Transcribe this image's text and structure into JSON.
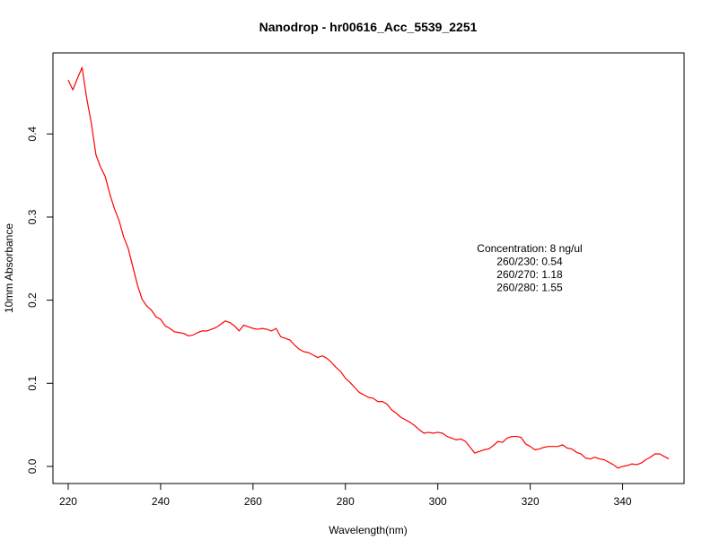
{
  "chart_data": {
    "type": "line",
    "title": "Nanodrop - hr00616_Acc_5539_2251",
    "xlabel": "Wavelength(nm)",
    "ylabel": "10mm Absorbance",
    "xlim": [
      216.7,
      353.3
    ],
    "ylim": [
      -0.0206,
      0.4975
    ],
    "xticks": [
      220,
      240,
      260,
      280,
      300,
      320,
      340
    ],
    "yticks": [
      0.0,
      0.1,
      0.2,
      0.3,
      0.4
    ],
    "ytick_labels": [
      "0.0",
      "0.1",
      "0.2",
      "0.3",
      "0.4"
    ],
    "grid": false,
    "line_color": "#ff0000",
    "annotations": [
      "Concentration: 8 ng/ul",
      "260/230: 0.54",
      "260/270: 1.18",
      "260/280: 1.55"
    ],
    "series": [
      {
        "x": [
          220,
          221,
          222,
          223,
          224,
          225,
          226,
          227,
          228,
          229,
          230,
          231,
          232,
          233,
          234,
          235,
          236,
          237,
          238,
          239,
          240,
          241,
          242,
          243,
          244,
          245,
          246,
          247,
          248,
          249,
          250,
          251,
          252,
          253,
          254,
          255,
          256,
          257,
          258,
          259,
          260,
          261,
          262,
          263,
          264,
          265,
          266,
          267,
          268,
          269,
          270,
          271,
          272,
          273,
          274,
          275,
          276,
          277,
          278,
          279,
          280,
          281,
          282,
          283,
          284,
          285,
          286,
          287,
          288,
          289,
          290,
          291,
          292,
          293,
          294,
          295,
          296,
          297,
          298,
          299,
          300,
          301,
          302,
          303,
          304,
          305,
          306,
          307,
          308,
          309,
          310,
          311,
          312,
          313,
          314,
          315,
          316,
          317,
          318,
          319,
          320,
          321,
          322,
          323,
          324,
          325,
          326,
          327,
          328,
          329,
          330,
          331,
          332,
          333,
          334,
          335,
          336,
          337,
          338,
          339,
          340,
          341,
          342,
          343,
          344,
          345,
          346,
          347,
          348,
          349,
          350
        ],
        "y": [
          0.465,
          0.453,
          0.467,
          0.48,
          0.443,
          0.413,
          0.375,
          0.36,
          0.349,
          0.328,
          0.31,
          0.296,
          0.276,
          0.262,
          0.24,
          0.218,
          0.201,
          0.193,
          0.188,
          0.18,
          0.177,
          0.169,
          0.166,
          0.162,
          0.161,
          0.16,
          0.157,
          0.158,
          0.161,
          0.163,
          0.163,
          0.165,
          0.167,
          0.171,
          0.175,
          0.173,
          0.169,
          0.163,
          0.17,
          0.168,
          0.166,
          0.165,
          0.166,
          0.165,
          0.163,
          0.166,
          0.156,
          0.154,
          0.152,
          0.146,
          0.141,
          0.138,
          0.137,
          0.134,
          0.131,
          0.133,
          0.13,
          0.125,
          0.119,
          0.114,
          0.106,
          0.101,
          0.095,
          0.089,
          0.086,
          0.083,
          0.082,
          0.078,
          0.078,
          0.075,
          0.068,
          0.064,
          0.059,
          0.056,
          0.053,
          0.049,
          0.044,
          0.04,
          0.041,
          0.04,
          0.041,
          0.04,
          0.036,
          0.034,
          0.032,
          0.033,
          0.03,
          0.023,
          0.016,
          0.018,
          0.02,
          0.021,
          0.025,
          0.03,
          0.029,
          0.034,
          0.036,
          0.036,
          0.035,
          0.027,
          0.024,
          0.02,
          0.021,
          0.023,
          0.024,
          0.024,
          0.024,
          0.026,
          0.022,
          0.021,
          0.017,
          0.015,
          0.01,
          0.009,
          0.011,
          0.009,
          0.008,
          0.005,
          0.002,
          -0.002,
          0.0,
          0.001,
          0.003,
          0.002,
          0.004,
          0.008,
          0.011,
          0.015,
          0.015,
          0.012,
          0.009
        ]
      }
    ]
  }
}
